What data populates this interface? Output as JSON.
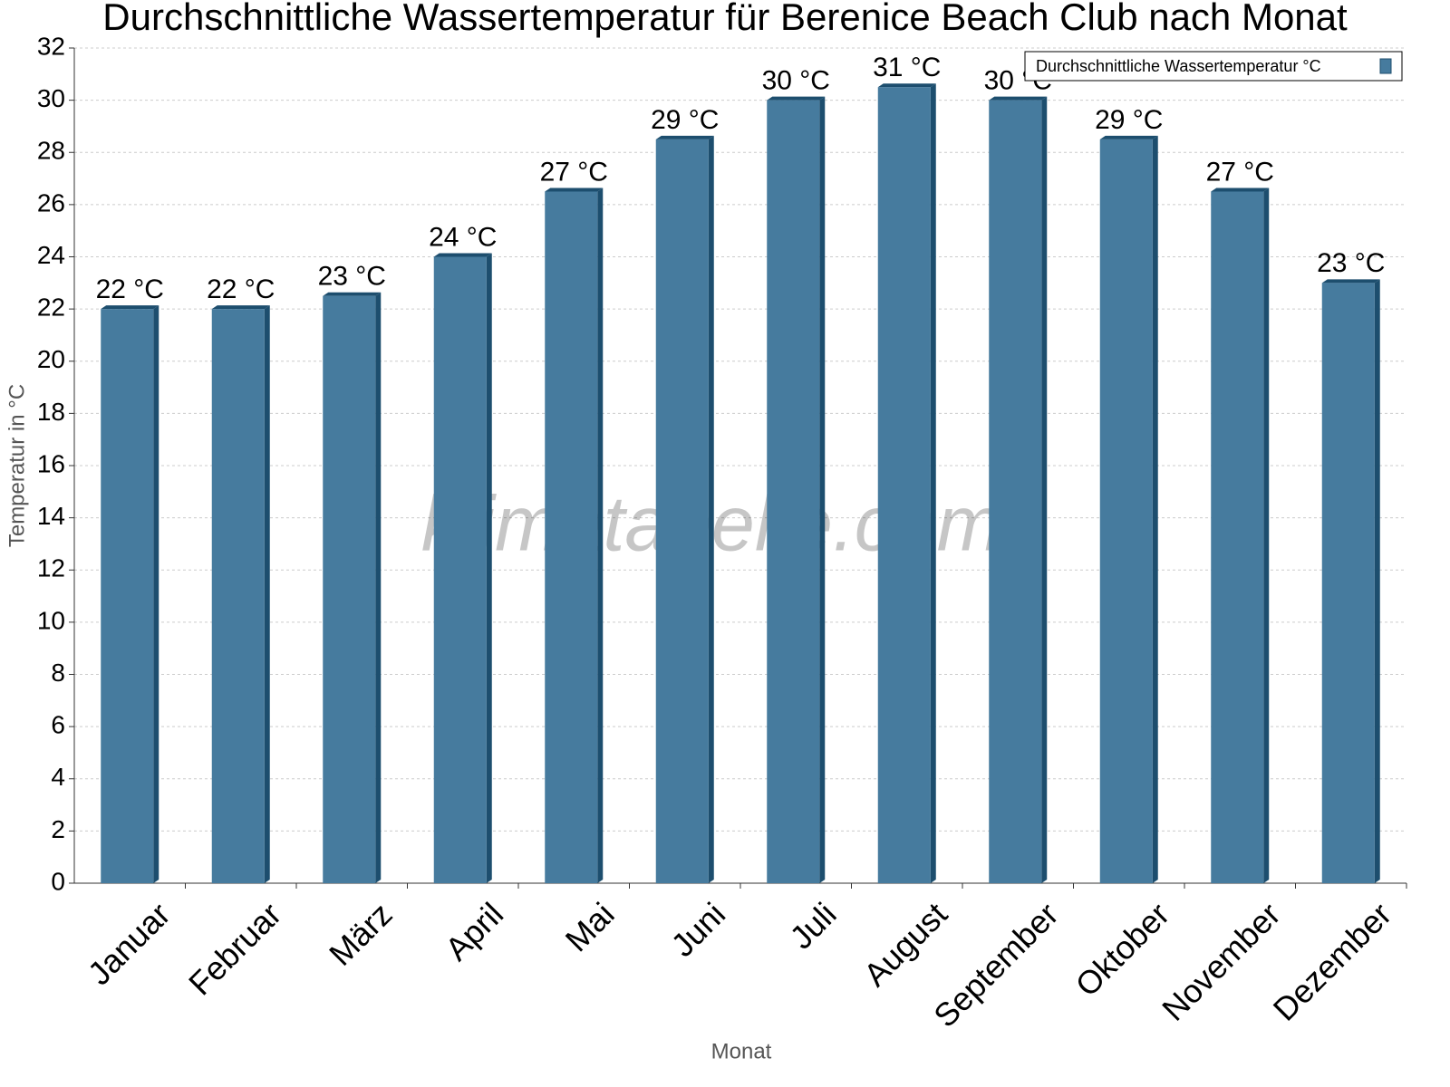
{
  "chart_data": {
    "type": "bar",
    "title": "Durchschnittliche Wassertemperatur für Berenice Beach Club nach Monat",
    "x_label": "Monat",
    "y_label": "Temperatur in °C",
    "watermark": "klimatabelle.com",
    "categories": [
      "Januar",
      "Februar",
      "März",
      "April",
      "Mai",
      "Juni",
      "Juli",
      "August",
      "September",
      "Oktober",
      "November",
      "Dezember"
    ],
    "series": [
      {
        "name": "Durchschnittliche Wassertemperatur °C",
        "color": "#467b9e",
        "values": [
          22,
          22,
          22.5,
          24,
          26.5,
          28.5,
          30,
          30.5,
          30,
          28.5,
          26.5,
          23
        ],
        "value_labels": [
          "22 °C",
          "22 °C",
          "23 °C",
          "24 °C",
          "27 °C",
          "29 °C",
          "30 °C",
          "31 °C",
          "30 °C",
          "29 °C",
          "27 °C",
          "23 °C"
        ]
      }
    ],
    "ylim": [
      0,
      32
    ],
    "yticks": [
      0,
      2,
      4,
      6,
      8,
      10,
      12,
      14,
      16,
      18,
      20,
      22,
      24,
      26,
      28,
      30,
      32
    ],
    "grid": true,
    "legend": "upper right"
  }
}
